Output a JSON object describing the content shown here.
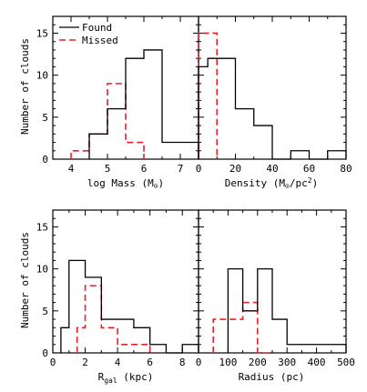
{
  "chart_data": [
    {
      "type": "histogram",
      "xlabel": "log Mass (M⊙)",
      "ylabel": "Number of clouds",
      "xlim": [
        3.5,
        7.5
      ],
      "ylim": [
        0,
        17
      ],
      "xticks": [
        4,
        5,
        6,
        7
      ],
      "yticks": [
        0,
        5,
        10,
        15
      ],
      "legend": "top-left",
      "series": [
        {
          "name": "Found",
          "color": "#000000",
          "dashed": false,
          "bins": [
            [
              4.5,
              5.0,
              3
            ],
            [
              5.0,
              5.5,
              6
            ],
            [
              5.5,
              6.0,
              12
            ],
            [
              6.0,
              6.5,
              13
            ],
            [
              6.5,
              7.5,
              2
            ]
          ]
        },
        {
          "name": "Missed",
          "color": "#e8202a",
          "dashed": true,
          "bins": [
            [
              4.0,
              4.5,
              1
            ],
            [
              4.5,
              5.0,
              3
            ],
            [
              5.0,
              5.5,
              9
            ],
            [
              5.5,
              6.0,
              2
            ]
          ]
        }
      ]
    },
    {
      "type": "histogram",
      "xlabel": "Density (M⊙/pc²)",
      "ylabel": "",
      "xlim": [
        0,
        80
      ],
      "ylim": [
        0,
        17
      ],
      "xticks": [
        0,
        20,
        40,
        60,
        80
      ],
      "yticks": [
        0,
        5,
        10,
        15
      ],
      "series": [
        {
          "name": "Found",
          "color": "#000000",
          "dashed": false,
          "bins": [
            [
              0,
              5,
              11
            ],
            [
              5,
              20,
              12
            ],
            [
              20,
              30,
              6
            ],
            [
              30,
              40,
              4
            ],
            [
              40,
              50,
              0
            ],
            [
              50,
              60,
              1
            ],
            [
              60,
              70,
              0
            ],
            [
              70,
              80,
              1
            ]
          ]
        },
        {
          "name": "Missed",
          "color": "#e8202a",
          "dashed": true,
          "bins": [
            [
              0,
              10,
              15
            ]
          ]
        }
      ]
    },
    {
      "type": "histogram",
      "xlabel": "Rgal (kpc)",
      "ylabel": "Number of clouds",
      "xlim": [
        0,
        9
      ],
      "ylim": [
        0,
        17
      ],
      "xticks": [
        0,
        2,
        4,
        6,
        8
      ],
      "yticks": [
        0,
        5,
        10,
        15
      ],
      "series": [
        {
          "name": "Found",
          "color": "#000000",
          "dashed": false,
          "bins": [
            [
              0.5,
              1.0,
              3
            ],
            [
              1.0,
              2.0,
              11
            ],
            [
              2.0,
              3.0,
              9
            ],
            [
              3.0,
              4.0,
              4
            ],
            [
              4.0,
              5.0,
              4
            ],
            [
              5.0,
              6.0,
              3
            ],
            [
              6.0,
              7.0,
              1
            ],
            [
              7.0,
              8.0,
              0
            ],
            [
              8.0,
              9.0,
              1
            ]
          ]
        },
        {
          "name": "Missed",
          "color": "#e8202a",
          "dashed": true,
          "bins": [
            [
              1.5,
              2.0,
              3
            ],
            [
              2.0,
              3.0,
              8
            ],
            [
              3.0,
              4.0,
              3
            ],
            [
              4.0,
              6.0,
              1
            ]
          ]
        }
      ]
    },
    {
      "type": "histogram",
      "xlabel": "Radius (pc)",
      "ylabel": "",
      "xlim": [
        0,
        500
      ],
      "ylim": [
        0,
        17
      ],
      "xticks": [
        0,
        100,
        200,
        300,
        400,
        500
      ],
      "yticks": [
        0,
        5,
        10,
        15
      ],
      "series": [
        {
          "name": "Found",
          "color": "#000000",
          "dashed": false,
          "bins": [
            [
              100,
              150,
              10
            ],
            [
              150,
              200,
              5
            ],
            [
              200,
              250,
              10
            ],
            [
              250,
              300,
              4
            ],
            [
              300,
              500,
              1
            ]
          ]
        },
        {
          "name": "Missed",
          "color": "#e8202a",
          "dashed": true,
          "bins": [
            [
              50,
              100,
              4
            ],
            [
              100,
              150,
              4
            ],
            [
              150,
              200,
              6
            ],
            [
              200,
              250,
              0
            ]
          ]
        }
      ]
    }
  ],
  "text": {
    "legend_found": "Found",
    "legend_missed": "Missed",
    "xlabel_mass_prefix": "log Mass (M",
    "xlabel_mass_suffix": ")",
    "xlabel_density_prefix": "Density (M",
    "xlabel_density_mid": "/pc",
    "xlabel_density_sup": "2",
    "xlabel_density_suffix": ")",
    "xlabel_rgal_main": "R",
    "xlabel_rgal_sub": "gal",
    "xlabel_rgal_suffix": " (kpc)",
    "xlabel_radius": "Radius (pc)",
    "ylabel": "Number of clouds",
    "sun_symbol": "⊙"
  }
}
